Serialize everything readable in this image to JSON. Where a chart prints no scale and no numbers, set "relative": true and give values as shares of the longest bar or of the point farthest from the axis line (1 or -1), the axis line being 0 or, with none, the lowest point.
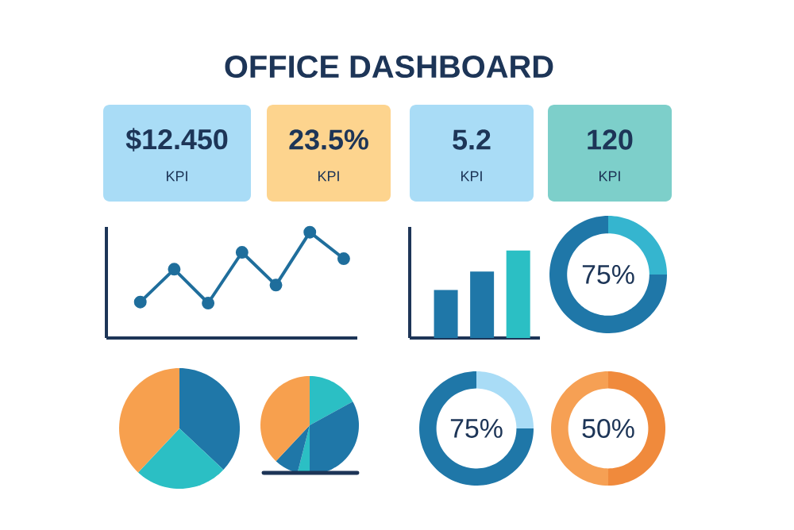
{
  "chart_data": [
    {
      "type": "other",
      "title": "OFFICE DASHBOARD",
      "categories": [
        "$12.450",
        "23.5%",
        "5.2",
        "120"
      ],
      "annotations": [
        "KPI",
        "KPI",
        "KPI",
        "KPI"
      ],
      "colors": [
        "#a9dcf6",
        "#fdd48e",
        "#a9dcf6",
        "#7dcfca"
      ]
    },
    {
      "type": "line",
      "relative": true,
      "marker": "circle",
      "categories": [
        null,
        null,
        null,
        null,
        null,
        null,
        null
      ],
      "series": [
        {
          "color": "#1f6e9c",
          "values": [
            0.34,
            0.65,
            0.33,
            0.81,
            0.5,
            1,
            0.75
          ]
        }
      ]
    },
    {
      "type": "bar",
      "relative": true,
      "categories": [
        null,
        null,
        null
      ],
      "values": [
        0.55,
        0.76,
        1
      ],
      "colors": [
        "#1f77a8",
        "#1f77a8",
        "#2bbfc4"
      ]
    },
    {
      "type": "donut",
      "categories": [
        null,
        null
      ],
      "values": [
        25,
        75
      ],
      "colors": [
        "#35b5cf",
        "#1f77a8"
      ],
      "value_labels": [
        null,
        "75%"
      ]
    },
    {
      "type": "pie",
      "categories": [
        null,
        null,
        null
      ],
      "values": [
        37,
        25,
        38
      ],
      "colors": [
        "#1f77a8",
        "#2bbfc4",
        "#f7a04e"
      ]
    },
    {
      "type": "pie",
      "categories": [
        null,
        null,
        null,
        null,
        null
      ],
      "values": [
        17,
        33,
        4,
        8,
        38
      ],
      "colors": [
        "#2bbfc4",
        "#1f77a8",
        "#2bbfc4",
        "#1f77a8",
        "#f7a04e"
      ]
    },
    {
      "type": "donut",
      "categories": [
        null,
        null
      ],
      "values": [
        25,
        75
      ],
      "colors": [
        "#a9dcf6",
        "#1f77a8"
      ],
      "value_labels": [
        null,
        "75%"
      ]
    },
    {
      "type": "donut",
      "categories": [
        null,
        null
      ],
      "values": [
        50,
        50
      ],
      "colors": [
        "#f08a3c",
        "#f6a054"
      ],
      "value_labels": [
        "50%",
        null
      ]
    }
  ]
}
